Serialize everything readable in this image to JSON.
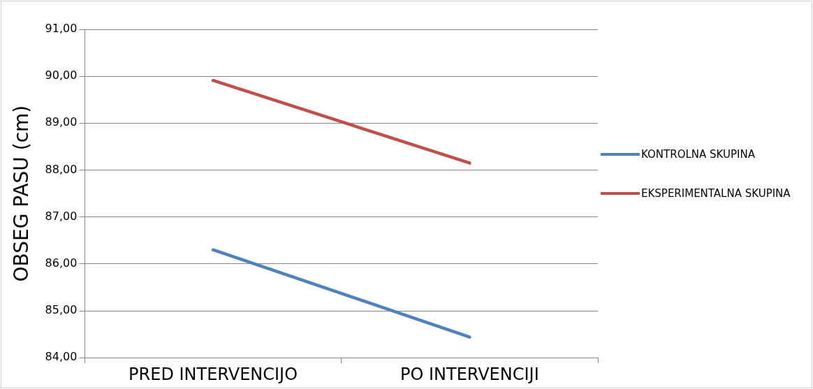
{
  "chart_data": {
    "type": "line",
    "ylabel": "OBSEG PASU (cm)",
    "categories": [
      "PRED INTERVENCIJO",
      "PO INTERVENCIJI"
    ],
    "series": [
      {
        "name": "KONTROLNA SKUPINA",
        "color": "#4f81bd",
        "values": [
          86.3,
          84.44
        ]
      },
      {
        "name": "EKSPERIMENTALNA SKUPINA",
        "color": "#c0504d",
        "values": [
          89.91,
          88.15
        ]
      }
    ],
    "ylim": [
      84,
      91
    ],
    "yticks": [
      {
        "value": 84,
        "label": "84,00"
      },
      {
        "value": 85,
        "label": "85,00"
      },
      {
        "value": 86,
        "label": "86,00"
      },
      {
        "value": 87,
        "label": "87,00"
      },
      {
        "value": 88,
        "label": "88,00"
      },
      {
        "value": 89,
        "label": "89,00"
      },
      {
        "value": 90,
        "label": "90,00"
      },
      {
        "value": 91,
        "label": "91,00"
      }
    ],
    "grid": "y",
    "legend": "right",
    "marker": "none",
    "line_style": "solid"
  }
}
